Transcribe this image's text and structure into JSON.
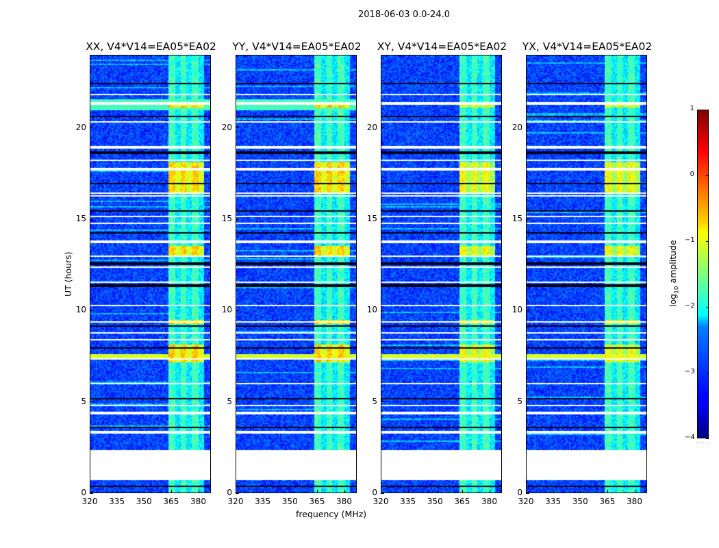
{
  "figure": {
    "suptitle": "2018-06-03 0.0-24.0"
  },
  "chart_data": [
    {
      "type": "heatmap",
      "title": "XX, V4*V14=EA05*EA02",
      "xlabel": "",
      "ylabel": "UT (hours)",
      "xlim": [
        320,
        387
      ],
      "ylim": [
        0,
        24
      ],
      "xticks": [
        "320",
        "335",
        "350",
        "365",
        "380"
      ],
      "yticks": [
        "0",
        "5",
        "10",
        "15",
        "20"
      ],
      "pol": "XX"
    },
    {
      "type": "heatmap",
      "title": "YY, V4*V14=EA05*EA02",
      "xlabel": "frequency (MHz)",
      "ylabel": "",
      "xlim": [
        320,
        387
      ],
      "ylim": [
        0,
        24
      ],
      "xticks": [
        "320",
        "335",
        "350",
        "365",
        "380"
      ],
      "yticks": [
        "0",
        "5",
        "10",
        "15",
        "20"
      ],
      "pol": "YY"
    },
    {
      "type": "heatmap",
      "title": "XY, V4*V14=EA05*EA02",
      "xlabel": "",
      "ylabel": "",
      "xlim": [
        320,
        387
      ],
      "ylim": [
        0,
        24
      ],
      "xticks": [
        "320",
        "335",
        "350",
        "365",
        "380"
      ],
      "yticks": [
        "0",
        "5",
        "10",
        "15",
        "20"
      ],
      "pol": "XY"
    },
    {
      "type": "heatmap",
      "title": "YX, V4*V14=EA05*EA02",
      "xlabel": "",
      "ylabel": "",
      "xlim": [
        320,
        387
      ],
      "ylim": [
        0,
        24
      ],
      "xticks": [
        "320",
        "335",
        "350",
        "365",
        "380"
      ],
      "yticks": [
        "0",
        "5",
        "10",
        "15",
        "20"
      ],
      "pol": "YX"
    }
  ],
  "colorbar": {
    "label_prefix": "log",
    "label_sub": "10",
    "label_suffix": " amplitude",
    "ticks": [
      "1",
      "0",
      "−1",
      "−2",
      "−3",
      "−4"
    ],
    "range": [
      -4,
      1
    ],
    "colormap": "jet",
    "underflow_marker": "......"
  },
  "data_features": {
    "gap_hours": [
      0.75,
      2.35
    ],
    "bright_band_mhz": [
      363.5,
      383
    ],
    "flagged_rows_hours": [
      0.35,
      3.3,
      3.4,
      3.6,
      4.4,
      4.8,
      5.2,
      6.0,
      7.4,
      8.0,
      8.4,
      8.8,
      9.2,
      9.4,
      10.3,
      11.4,
      11.6,
      12.4,
      12.6,
      13.0,
      13.8,
      14.3,
      14.8,
      15.2,
      15.5,
      16.3,
      16.5,
      17.0,
      17.8,
      18.3,
      18.7,
      19.0,
      20.4,
      20.7,
      21.4,
      21.9,
      22.5
    ]
  }
}
